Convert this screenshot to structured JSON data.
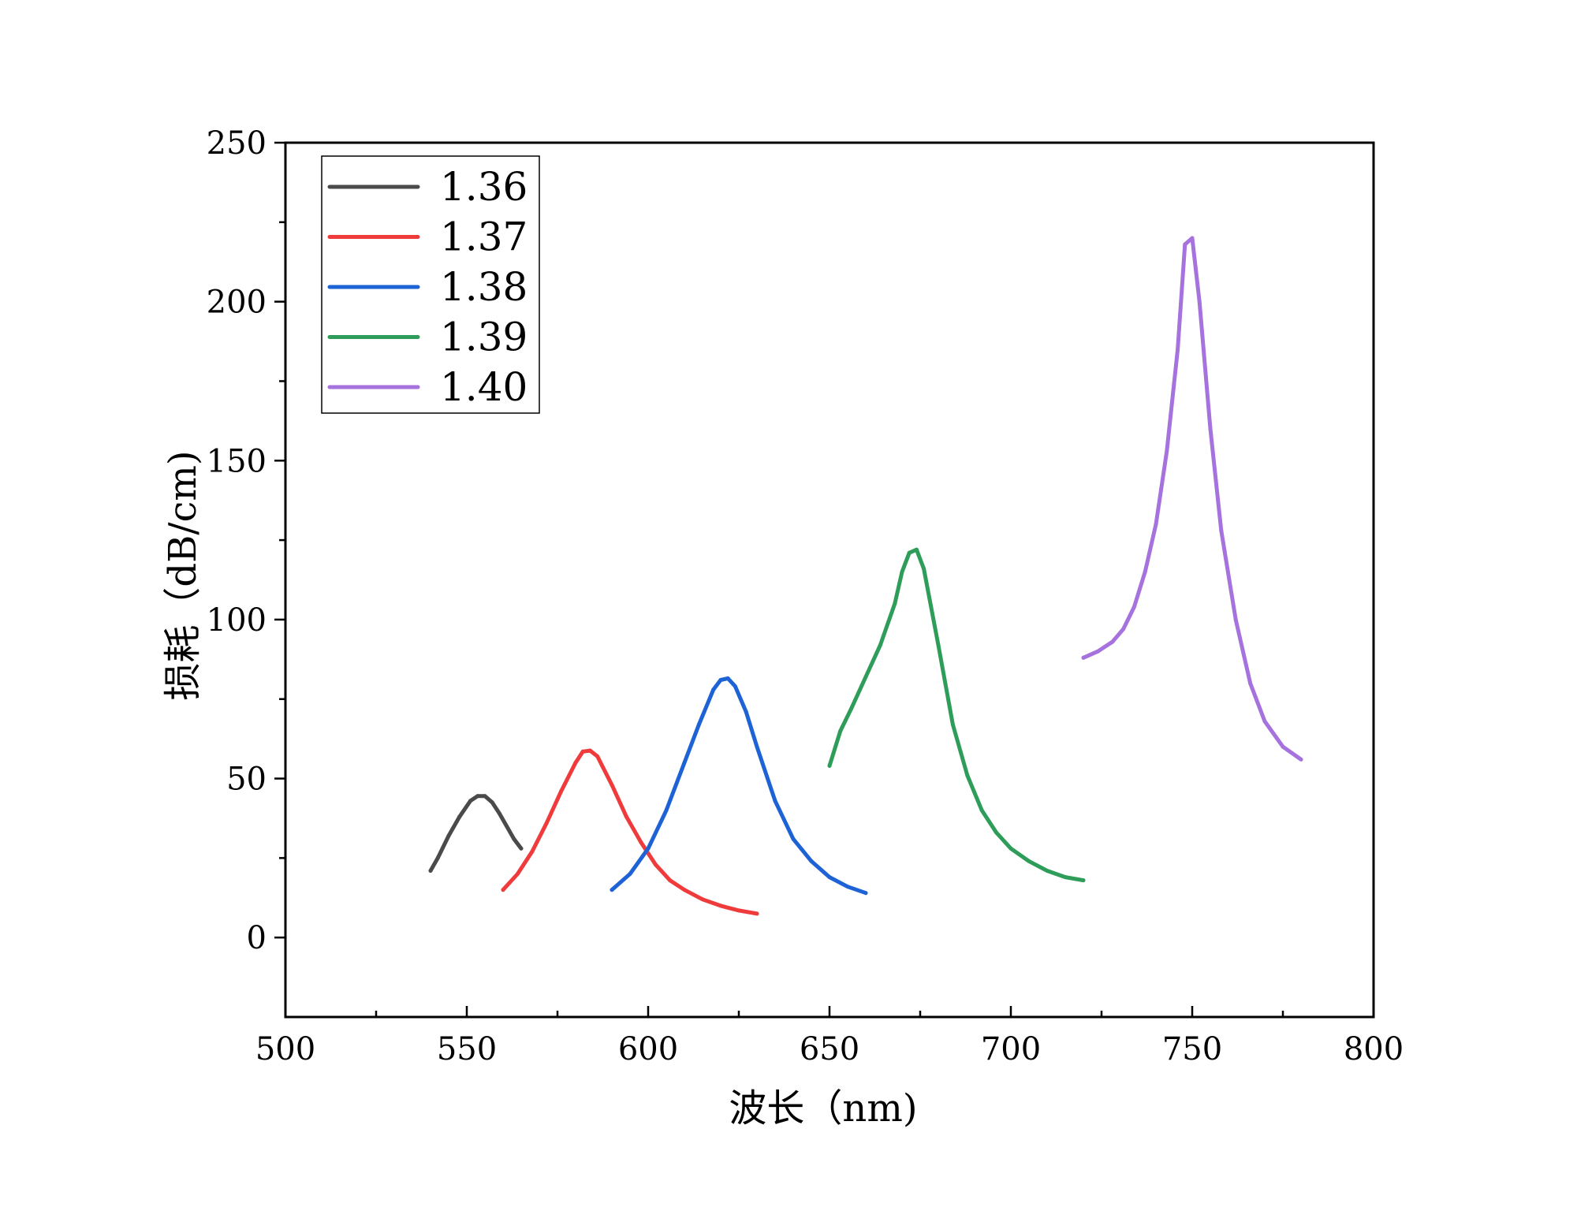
{
  "chart_data": {
    "type": "line",
    "title": "",
    "xlabel": "波长（nm)",
    "ylabel": "损耗（dB/cm)",
    "xlim": [
      500,
      800
    ],
    "ylim": [
      -25,
      250
    ],
    "xticks": [
      500,
      550,
      600,
      650,
      700,
      750,
      800
    ],
    "yticks": [
      0,
      50,
      100,
      150,
      200,
      250
    ],
    "xtick_labels": [
      "500",
      "550",
      "600",
      "650",
      "700",
      "750",
      "800"
    ],
    "ytick_labels": [
      "0",
      "50",
      "100",
      "150",
      "200",
      "250"
    ],
    "grid": false,
    "legend_position": "top-left",
    "series": [
      {
        "name": "1.36",
        "color": "#4a4a4a",
        "x": [
          540,
          542,
          545,
          548,
          551,
          553,
          555,
          557,
          559,
          561,
          563,
          565
        ],
        "y": [
          21,
          25,
          32,
          38,
          43,
          44.5,
          44.5,
          42.5,
          39,
          35,
          31,
          28
        ]
      },
      {
        "name": "1.37",
        "color": "#ef3b3b",
        "x": [
          560,
          564,
          568,
          572,
          576,
          580,
          582,
          584,
          586,
          590,
          594,
          598,
          602,
          606,
          610,
          615,
          620,
          625,
          630
        ],
        "y": [
          15,
          20,
          27,
          36,
          46,
          55,
          58.5,
          58.8,
          57,
          48,
          38,
          30,
          23,
          18,
          15,
          12,
          10,
          8.5,
          7.5
        ]
      },
      {
        "name": "1.38",
        "color": "#1e63d6",
        "x": [
          590,
          595,
          600,
          605,
          610,
          614,
          618,
          620,
          622,
          624,
          627,
          630,
          635,
          640,
          645,
          650,
          655,
          660
        ],
        "y": [
          15,
          20,
          28,
          40,
          55,
          67,
          78,
          81,
          81.5,
          79,
          71,
          60,
          43,
          31,
          24,
          19,
          16,
          14
        ]
      },
      {
        "name": "1.39",
        "color": "#2f9d5a",
        "x": [
          650,
          653,
          656,
          660,
          664,
          668,
          670,
          672,
          674,
          676,
          680,
          684,
          688,
          692,
          696,
          700,
          705,
          710,
          715,
          720
        ],
        "y": [
          54,
          65,
          72,
          82,
          92,
          105,
          115,
          121,
          122,
          116,
          92,
          67,
          51,
          40,
          33,
          28,
          24,
          21,
          19,
          18
        ]
      },
      {
        "name": "1.40",
        "color": "#a672dd",
        "x": [
          720,
          724,
          728,
          731,
          734,
          737,
          740,
          743,
          746,
          748,
          750,
          752,
          755,
          758,
          762,
          766,
          770,
          775,
          780
        ],
        "y": [
          88,
          90,
          93,
          97,
          104,
          115,
          130,
          153,
          185,
          218,
          220,
          200,
          160,
          128,
          100,
          80,
          68,
          60,
          56
        ]
      }
    ]
  }
}
